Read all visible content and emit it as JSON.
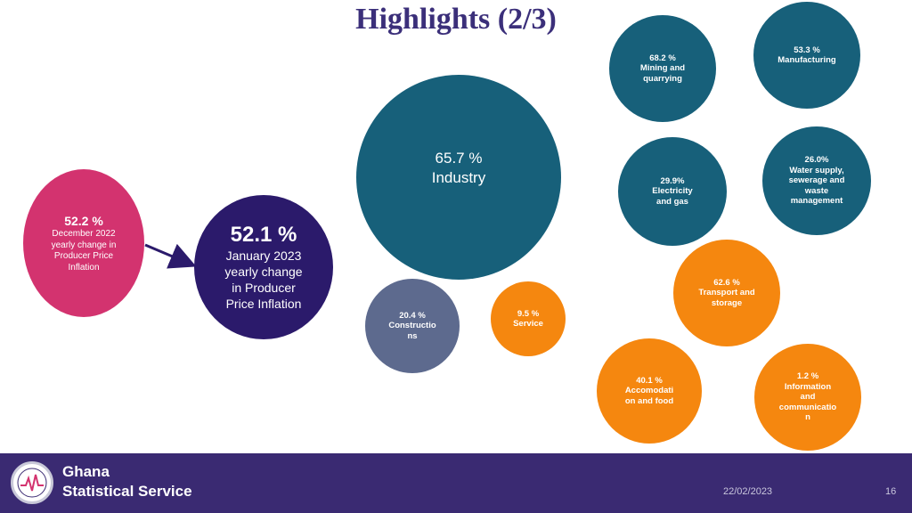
{
  "title": "Highlights (2/3)",
  "bubbles": {
    "manufacturing": {
      "value": "53.3 %",
      "label": "Manufacturing"
    },
    "mining": {
      "value": "68.2 %",
      "label": "Mining and quarrying"
    },
    "industry": {
      "value": "65.7 %",
      "label": "Industry"
    },
    "water": {
      "value": "26.0%",
      "label": "Water supply, sewerage and waste management"
    },
    "electricity": {
      "value": "29.9%",
      "label": "Electricity and gas"
    },
    "transport": {
      "value": "62.6 %",
      "label": "Transport and storage"
    },
    "construction": {
      "value": "20.4 %",
      "label": "Constructio ns"
    },
    "service": {
      "value": "9.5 %",
      "label": "Service"
    },
    "accommodation": {
      "value": "40.1 %",
      "label": "Accomodati on and food"
    },
    "information": {
      "value": "1.2 %",
      "label": "Information and communicatio n"
    },
    "december": {
      "value": "52.2 %",
      "label": "December 2022 yearly change in Producer Price Inflation"
    },
    "january": {
      "value": "52.1 %",
      "label": "January 2023 yearly change in Producer Price Inflation"
    }
  },
  "footer": {
    "org_line1": "Ghana",
    "org_line2": "Statistical Service",
    "date": "22/02/2023",
    "page": "16"
  },
  "colors": {
    "teal": "#17607a",
    "orange": "#f5870f",
    "slate": "#5d6a8e",
    "pink": "#d3336f",
    "navy": "#2b1a6b",
    "footer": "#3a2a72",
    "title": "#3b2f7a"
  }
}
